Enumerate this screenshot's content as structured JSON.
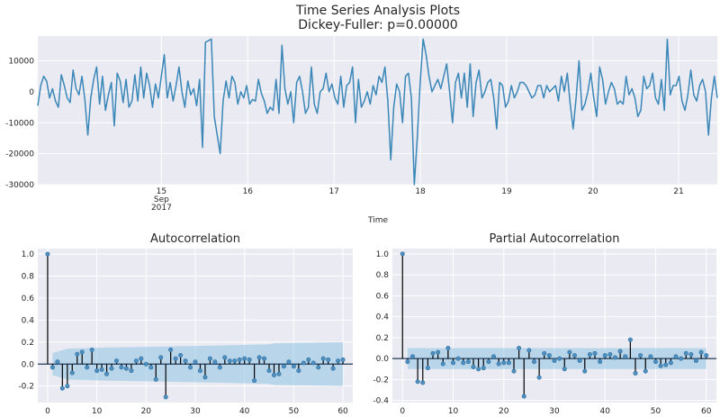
{
  "figure": {
    "title_line1": "Time Series Analysis Plots",
    "title_line2": "Dickey-Fuller: p=0.00000"
  },
  "colors": {
    "panel_bg": "#eaeaf2",
    "series": "#3a87b8",
    "stem": "#000000",
    "marker": "#4c8fc0",
    "ci_band": "#8fc3e3"
  },
  "chart_data": [
    {
      "type": "line",
      "title": "",
      "xlabel": "Time",
      "ylabel": "",
      "ylim": [
        -30000,
        18000
      ],
      "yticks": [
        10000,
        0,
        -10000,
        -20000,
        -30000
      ],
      "ytick_labels": [
        "10000",
        "0",
        "-10000",
        "-20000",
        "-30000"
      ],
      "xtick_labels": [
        {
          "lines": [
            "15",
            "Sep",
            "2017"
          ],
          "pos": 0.182
        },
        {
          "lines": [
            "16"
          ],
          "pos": 0.309
        },
        {
          "lines": [
            "17"
          ],
          "pos": 0.436
        },
        {
          "lines": [
            "18"
          ],
          "pos": 0.563
        },
        {
          "lines": [
            "19"
          ],
          "pos": 0.69
        },
        {
          "lines": [
            "20"
          ],
          "pos": 0.817
        },
        {
          "lines": [
            "21"
          ],
          "pos": 0.943
        }
      ],
      "series": [
        {
          "values": [
            -4500,
            2000,
            5000,
            3500,
            -2000,
            1000,
            -3000,
            -5000,
            5500,
            2000,
            -2000,
            -3500,
            7000,
            1000,
            -1000,
            5000,
            -2500,
            -14000,
            -2000,
            4000,
            8000,
            -4000,
            5000,
            -6000,
            -1000,
            3000,
            -11000,
            6000,
            3500,
            -3500,
            4000,
            -5000,
            -3000,
            5500,
            -3000,
            8000,
            -2000,
            6000,
            2000,
            -5000,
            2500,
            -2000,
            5000,
            12000,
            -2000,
            3000,
            -3000,
            2000,
            8000,
            0,
            -5000,
            3500,
            -1000,
            1000,
            -4500,
            4000,
            -18000,
            16000,
            16500,
            17000,
            -8000,
            -14000,
            -20000,
            -3000,
            3500,
            -2000,
            5000,
            3000,
            -4000,
            0,
            -2000,
            2000,
            -4000,
            -2500,
            -3000,
            4000,
            -500,
            -3000,
            -7000,
            -5000,
            -6000,
            4000,
            -7000,
            15000,
            1000,
            -4000,
            0,
            -10000,
            3000,
            5000,
            0,
            -7000,
            -5000,
            8000,
            -4000,
            -7000,
            0,
            1000,
            6000,
            0,
            2500,
            -2000,
            -4000,
            5000,
            -5000,
            2000,
            3000,
            8000,
            -10000,
            4000,
            -5000,
            -3000,
            0,
            -4000,
            2000,
            -1000,
            5000,
            3000,
            8000,
            -3000,
            -22000,
            -5000,
            2500,
            0,
            -10000,
            5000,
            6000,
            -2000,
            -30000,
            -15000,
            3000,
            17000,
            12000,
            5000,
            0,
            2000,
            4000,
            1000,
            5000,
            9000,
            0,
            -10000,
            3000,
            6000,
            -2000,
            6000,
            -5000,
            9000,
            -8000,
            3000,
            7000,
            -2000,
            0,
            3000,
            4000,
            -2000,
            -12000,
            3000,
            2000,
            -5000,
            -3000,
            2000,
            -2000,
            0,
            3000,
            3000,
            2000,
            0,
            -2000,
            -1000,
            2000,
            2000,
            -2000,
            2000,
            0,
            1000,
            2000,
            -3000,
            5000,
            0,
            6000,
            -4000,
            -12000,
            -2000,
            10000,
            -6000,
            -4000,
            0,
            6000,
            -2000,
            -8000,
            8000,
            4000,
            -4000,
            0,
            3000,
            1000,
            -4000,
            -3000,
            -4000,
            5000,
            -1000,
            1000,
            -2000,
            -8000,
            -6000,
            5000,
            1000,
            2000,
            6000,
            -2000,
            -4000,
            4000,
            -6000,
            17000,
            -1000,
            2000,
            2000,
            5000,
            -3000,
            -6000,
            -1000,
            7000,
            -1000,
            -3000,
            2000,
            4000,
            0,
            -14000,
            -2000,
            5000,
            -2000
          ]
        }
      ]
    },
    {
      "type": "bar",
      "title": "Autocorrelation",
      "ylim": [
        -0.35,
        1.05
      ],
      "yticks": [
        1.0,
        0.8,
        0.6,
        0.4,
        0.2,
        0.0,
        -0.2
      ],
      "ytick_labels": [
        "1.0",
        "0.8",
        "0.6",
        "0.4",
        "0.2",
        "0.0",
        "-0.2"
      ],
      "xlim": [
        -2,
        62
      ],
      "xticks": [
        0,
        10,
        20,
        30,
        40,
        50,
        60
      ],
      "xtick_labels": [
        "0",
        "10",
        "20",
        "30",
        "40",
        "50",
        "60"
      ],
      "lags": [
        0,
        1,
        2,
        3,
        4,
        5,
        6,
        7,
        8,
        9,
        10,
        11,
        12,
        13,
        14,
        15,
        16,
        17,
        18,
        19,
        20,
        21,
        22,
        23,
        24,
        25,
        26,
        27,
        28,
        29,
        30,
        31,
        32,
        33,
        34,
        35,
        36,
        37,
        38,
        39,
        40,
        41,
        42,
        43,
        44,
        45,
        46,
        47,
        48,
        49,
        50,
        51,
        52,
        53,
        54,
        55,
        56,
        57,
        58,
        59,
        60
      ],
      "values": [
        1.0,
        -0.03,
        0.02,
        -0.22,
        -0.2,
        -0.08,
        0.09,
        0.11,
        -0.03,
        0.13,
        -0.06,
        -0.05,
        -0.09,
        -0.04,
        0.03,
        -0.03,
        -0.04,
        -0.06,
        0.03,
        0.05,
        0.0,
        -0.03,
        -0.14,
        0.06,
        -0.3,
        0.13,
        0.05,
        0.08,
        0.03,
        -0.03,
        0.02,
        -0.06,
        -0.12,
        0.05,
        0.02,
        -0.03,
        0.06,
        0.03,
        0.03,
        0.04,
        0.05,
        0.04,
        -0.15,
        0.06,
        0.05,
        -0.06,
        -0.1,
        -0.09,
        -0.02,
        0.02,
        -0.02,
        -0.06,
        0.01,
        0.04,
        0.01,
        -0.03,
        0.05,
        0.04,
        -0.04,
        0.03,
        0.04
      ],
      "confidence_band": {
        "lags": [
          1,
          4,
          12,
          24,
          36,
          45,
          46,
          60
        ],
        "upper": [
          0.1,
          0.14,
          0.15,
          0.16,
          0.17,
          0.18,
          0.19,
          0.2
        ]
      }
    },
    {
      "type": "bar",
      "title": "Partial Autocorrelation",
      "ylim": [
        -0.42,
        1.05
      ],
      "yticks": [
        1.0,
        0.8,
        0.6,
        0.4,
        0.2,
        0.0,
        -0.2,
        -0.4
      ],
      "ytick_labels": [
        "1.0",
        "0.8",
        "0.6",
        "0.4",
        "0.2",
        "0.0",
        "-0.2",
        "-0.4"
      ],
      "xlim": [
        -2,
        62
      ],
      "xticks": [
        0,
        10,
        20,
        30,
        40,
        50,
        60
      ],
      "xtick_labels": [
        "0",
        "10",
        "20",
        "30",
        "40",
        "50",
        "60"
      ],
      "lags": [
        0,
        1,
        2,
        3,
        4,
        5,
        6,
        7,
        8,
        9,
        10,
        11,
        12,
        13,
        14,
        15,
        16,
        17,
        18,
        19,
        20,
        21,
        22,
        23,
        24,
        25,
        26,
        27,
        28,
        29,
        30,
        31,
        32,
        33,
        34,
        35,
        36,
        37,
        38,
        39,
        40,
        41,
        42,
        43,
        44,
        45,
        46,
        47,
        48,
        49,
        50,
        51,
        52,
        53,
        54,
        55,
        56,
        57,
        58,
        59,
        60
      ],
      "values": [
        1.0,
        -0.03,
        0.02,
        -0.22,
        -0.23,
        -0.09,
        0.05,
        0.06,
        -0.05,
        0.1,
        -0.04,
        0.0,
        -0.04,
        -0.03,
        -0.08,
        -0.1,
        -0.09,
        -0.03,
        0.02,
        -0.05,
        -0.04,
        -0.04,
        -0.12,
        0.1,
        -0.36,
        0.08,
        -0.03,
        -0.18,
        0.05,
        0.03,
        -0.02,
        0.0,
        -0.1,
        0.06,
        0.03,
        -0.02,
        -0.12,
        0.04,
        0.05,
        -0.03,
        0.03,
        0.04,
        0.01,
        0.07,
        0.02,
        0.18,
        -0.14,
        0.03,
        -0.12,
        0.02,
        -0.03,
        -0.07,
        -0.06,
        -0.04,
        0.02,
        0.0,
        0.05,
        0.04,
        -0.02,
        0.06,
        0.03
      ],
      "confidence_band": {
        "lags": [
          1,
          60
        ],
        "upper": [
          0.1,
          0.1
        ]
      }
    }
  ]
}
